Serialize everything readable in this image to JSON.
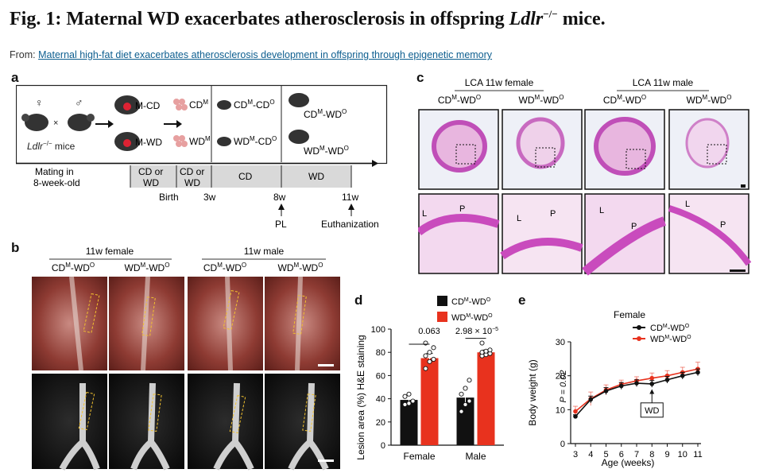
{
  "figure": {
    "title_prefix": "Fig. 1: ",
    "title_main": "Maternal WD exacerbates atherosclerosis in offspring ",
    "title_gene": "Ldlr",
    "title_sup": "−/−",
    "title_suffix": " mice.",
    "from_label": "From:",
    "from_link": "Maternal high-fat diet exacerbates atherosclerosis development in offspring through epigenetic memory"
  },
  "panel_a": {
    "label": "a",
    "female_symbol": "♀",
    "male_symbol": "♂",
    "cross": "×",
    "mice_gene": "Ldlr",
    "mice_sup": "−/−",
    "mice_suffix": " mice",
    "mcd": "M-CD",
    "mwd": "M-WD",
    "cdm": "CD",
    "wdm": "WD",
    "sup_m": "M",
    "sup_o": "O",
    "g1_a": "CD",
    "g1_b": "-CD",
    "g2_a": "WD",
    "g2_b": "-CD",
    "g3_a": "CD",
    "g3_b": "-WD",
    "g4_a": "WD",
    "g4_b": "-WD",
    "timeline": {
      "mating_1": "Mating in",
      "mating_2": "8-week-old",
      "cd_or": "CD or",
      "wd": "WD",
      "cd": "CD",
      "birth": "Birth",
      "w3": "3w",
      "w8": "8w",
      "w11": "11w",
      "pl": "PL",
      "euth": "Euthanization"
    }
  },
  "panel_b": {
    "label": "b",
    "female_header": "11w female",
    "male_header": "11w male",
    "col_cd": "CD",
    "col_wd": "WD",
    "col_suffix": "-WD"
  },
  "panel_c": {
    "label": "c",
    "female_header": "LCA 11w female",
    "male_header": "LCA 11w male",
    "L": "L",
    "P": "P"
  },
  "panel_d": {
    "label": "d",
    "ylabel": "Lesion area (%) H&E staining",
    "legend": [
      {
        "a": "CD",
        "b": "-WD",
        "color": "#111111"
      },
      {
        "a": "WD",
        "b": "-WD",
        "color": "#e8321e"
      }
    ],
    "p_female": "0.063",
    "p_male_a": "2.98 × 10",
    "p_male_exp": "−5"
  },
  "panel_e": {
    "label": "e",
    "title": "Female",
    "ylabel": "Body weight (g)",
    "xlabel": "Age (weeks)",
    "pval": "P = 0.02",
    "wd_box": "WD",
    "legend": [
      {
        "a": "CD",
        "b": "-WD",
        "color": "#111111"
      },
      {
        "a": "WD",
        "b": "-WD",
        "color": "#e8321e"
      }
    ]
  },
  "chart_data": [
    {
      "type": "bar",
      "title": "",
      "xlabel": "",
      "ylabel": "Lesion area (%) H&E staining",
      "categories": [
        "Female",
        "Male"
      ],
      "ylim": [
        0,
        100
      ],
      "yticks": [
        0,
        20,
        40,
        60,
        80,
        100
      ],
      "legend": "top",
      "series": [
        {
          "name": "CDM-WDO",
          "color": "#111111",
          "values": [
            39,
            41
          ],
          "errors": [
            4,
            6
          ],
          "points": [
            [
              35,
              36,
              38,
              42,
              44
            ],
            [
              29,
              35,
              38,
              44,
              49,
              56
            ]
          ]
        },
        {
          "name": "WDM-WDO",
          "color": "#e8321e",
          "values": [
            75,
            80
          ],
          "errors": [
            4,
            2
          ],
          "points": [
            [
              66,
              72,
              74,
              77,
              80,
              84,
              88
            ],
            [
              77,
              78,
              79,
              80,
              81,
              82,
              88
            ]
          ]
        }
      ]
    },
    {
      "type": "line",
      "title": "Female",
      "xlabel": "Age (weeks)",
      "ylabel": "Body weight (g)",
      "x": [
        3,
        4,
        5,
        6,
        7,
        8,
        9,
        10,
        11
      ],
      "xlim": [
        3,
        11
      ],
      "ylim": [
        0,
        30
      ],
      "yticks": [
        0,
        10,
        20,
        30
      ],
      "legend": "top",
      "series": [
        {
          "name": "CDM-WDO",
          "color": "#111111",
          "values": [
            8,
            13,
            15.5,
            17,
            17.8,
            17.6,
            18.8,
            20,
            21
          ],
          "errors": [
            0.5,
            1,
            1,
            1,
            1,
            1,
            1,
            1,
            1
          ]
        },
        {
          "name": "WDM-WDO",
          "color": "#e8321e",
          "values": [
            9.5,
            13.2,
            15.8,
            17.5,
            18.5,
            19.3,
            20,
            21,
            22
          ],
          "errors": [
            1.5,
            2,
            1.5,
            1.2,
            1.2,
            1.5,
            1.5,
            1.5,
            2
          ]
        }
      ]
    }
  ]
}
